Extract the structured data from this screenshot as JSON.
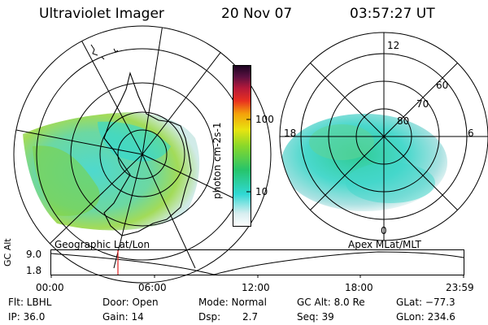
{
  "header": {
    "title": "Ultraviolet Imager",
    "date": "20 Nov 07",
    "time": "03:57:27 UT"
  },
  "left_panel": {
    "caption": "Geographic Lat/Lon"
  },
  "right_panel": {
    "caption": "Apex  MLat/MLT",
    "mlt_labels": {
      "top": "12",
      "left": "18",
      "right": "6",
      "bottom": "0"
    },
    "lat_labels": [
      "60",
      "70",
      "80"
    ]
  },
  "colorbar": {
    "unit_label": "photon cm-2s-1",
    "ticks": [
      "100",
      "10"
    ]
  },
  "timeline": {
    "ylabel": "GC Alt",
    "y_ticks": [
      "9.0",
      "1.8"
    ],
    "x_ticks": [
      "00:00",
      "06:00",
      "12:00",
      "18:00",
      "23:59"
    ],
    "current_marker_color": "#e02020"
  },
  "info": {
    "flt": "Flt: LBHL",
    "ip": "IP: 36.0",
    "door": "Door: Open",
    "gain": "Gain: 14",
    "mode": "Mode: Normal",
    "dsp_label": "Dsp:",
    "dsp_value": "2.7",
    "gcalt": "GC Alt: 8.0 Re",
    "seq": "Seq: 39",
    "glat": "GLat: −77.3",
    "glon": "GLon: 234.6"
  }
}
